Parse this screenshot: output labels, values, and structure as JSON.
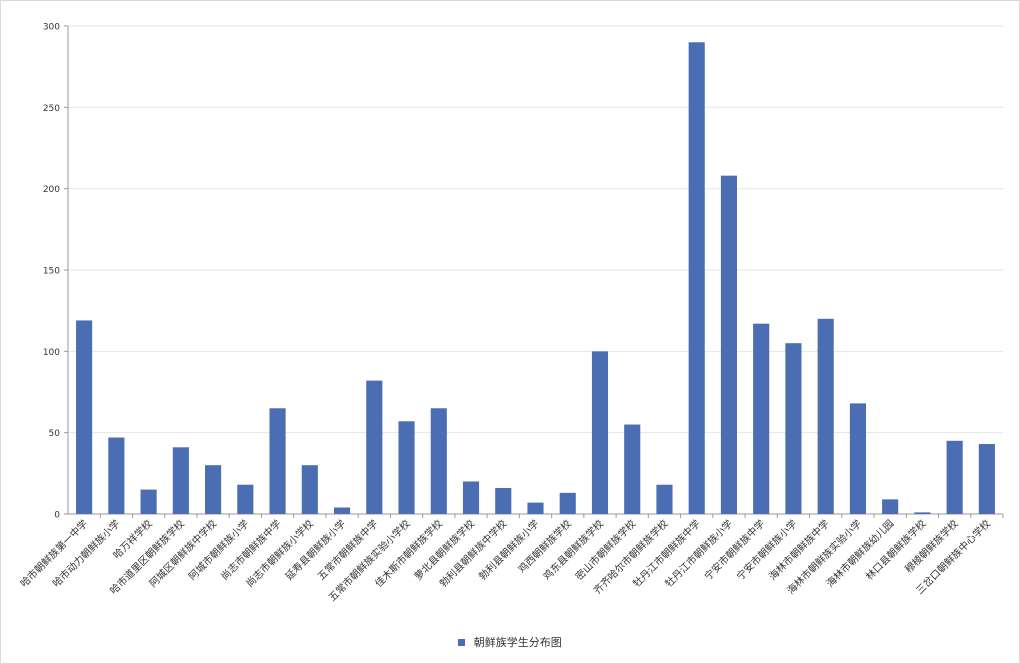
{
  "colors": {
    "bar": "#4a6db3",
    "grid": "#e6e6e6",
    "axis": "#9a9a9a",
    "text": "#333333"
  },
  "chart_data": {
    "type": "bar",
    "title": "",
    "xlabel": "",
    "ylabel": "",
    "ylim": [
      0,
      300
    ],
    "yticks": [
      0,
      50,
      100,
      150,
      200,
      250,
      300
    ],
    "grid": true,
    "legend_position": "bottom",
    "categories": [
      "哈市朝鲜族第一中学",
      "哈市动力朝鲜族小学",
      "哈万祥学校",
      "哈市道里区朝鲜族学校",
      "阿城区朝鲜族中学校",
      "阿城市朝鲜族小学",
      "尚志市朝鲜族中学",
      "尚志市朝鲜族小学校",
      "延寿县朝鲜族小学",
      "五常市朝鲜族中学",
      "五常市朝鲜族实验小学校",
      "佳木斯市朝鲜族学校",
      "萝北县朝鲜族学校",
      "勃利县朝鲜族中学校",
      "勃利县朝鲜族小学",
      "鸡西朝鲜族学校",
      "鸡东县朝鲜族学校",
      "密山市朝鲜族学校",
      "齐齐哈尔市朝鲜族学校",
      "牡丹江市朝鲜族中学",
      "牡丹江市朝鲜族小学",
      "宁安市朝鲜族中学",
      "宁安市朝鲜族小学",
      "海林市朝鲜族中学",
      "海林市朝鲜族实验小学",
      "海林市朝鲜族幼儿园",
      "林口县朝鲜族学校",
      "穆棱朝鲜族学校",
      "三岔口朝鲜族中心学校"
    ],
    "series": [
      {
        "name": "朝鲜族学生分布图",
        "values": [
          119,
          47,
          15,
          41,
          30,
          18,
          65,
          30,
          4,
          82,
          57,
          65,
          20,
          16,
          7,
          13,
          100,
          55,
          18,
          290,
          208,
          117,
          105,
          120,
          68,
          9,
          1,
          45,
          43
        ]
      }
    ]
  }
}
